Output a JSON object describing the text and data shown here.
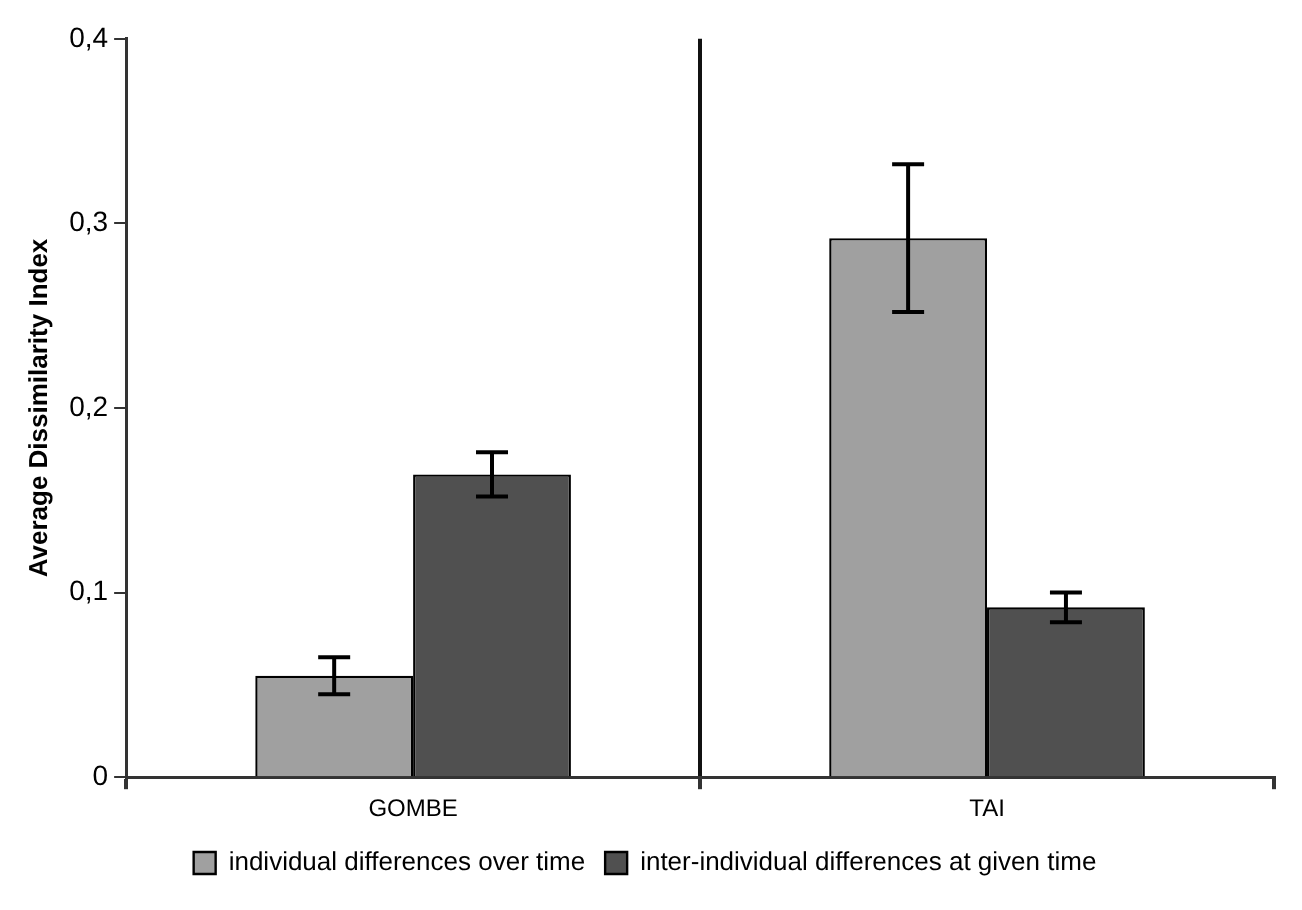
{
  "chart_data": {
    "type": "bar",
    "ylabel": "Average Dissimilarity Index",
    "categories": [
      "GOMBE",
      "TAI"
    ],
    "series": [
      {
        "name": "individual differences over time",
        "color": "#a0a0a0",
        "values": [
          0.055,
          0.292
        ],
        "errors": [
          0.01,
          0.04
        ]
      },
      {
        "name": "inter-individual differences at given time",
        "color": "#505050",
        "values": [
          0.164,
          0.092
        ],
        "errors": [
          0.012,
          0.008
        ]
      }
    ],
    "ylim": [
      0,
      0.4
    ],
    "yticks": [
      {
        "value": 0,
        "label": "0"
      },
      {
        "value": 0.1,
        "label": "0,1"
      },
      {
        "value": 0.2,
        "label": "0,2"
      },
      {
        "value": 0.3,
        "label": "0,3"
      },
      {
        "value": 0.4,
        "label": "0,4"
      }
    ],
    "grid": "x",
    "legend": "bottom"
  }
}
